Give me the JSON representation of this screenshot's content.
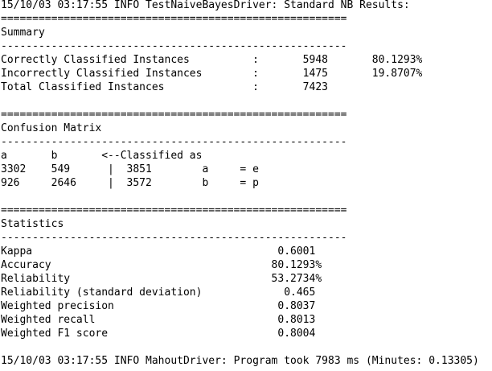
{
  "terminal": {
    "lines": [
      "15/10/03 03:17:55 INFO TestNaiveBayesDriver: Standard NB Results: ",
      "=======================================================",
      "Summary",
      "-------------------------------------------------------",
      "Correctly Classified Instances          :       5948       80.1293%",
      "Incorrectly Classified Instances        :       1475       19.8707%",
      "Total Classified Instances              :       7423",
      "",
      "=======================================================",
      "Confusion Matrix",
      "-------------------------------------------------------",
      "a       b       <--Classified as",
      "3302    549      |  3851        a     = e",
      "926     2646     |  3572        b     = p",
      "",
      "=======================================================",
      "Statistics",
      "-------------------------------------------------------",
      "Kappa                                       0.6001",
      "Accuracy                                   80.1293%",
      "Reliability                                53.2734%",
      "Reliability (standard deviation)             0.465",
      "Weighted precision                          0.8037",
      "Weighted recall                             0.8013",
      "Weighted F1 score                           0.8004",
      "",
      "15/10/03 03:17:55 INFO MahoutDriver: Program took 7983 ms (Minutes: 0.13305)"
    ]
  }
}
